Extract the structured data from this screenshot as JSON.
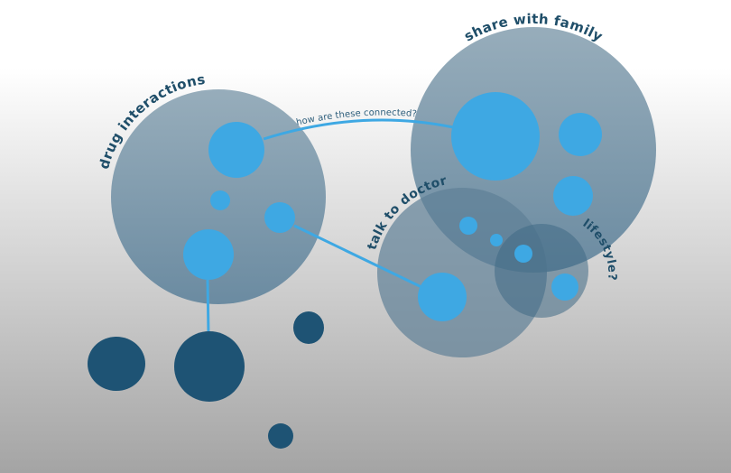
{
  "colors": {
    "cluster_top": "#97acba",
    "cluster_bottom": "#6a8aa0",
    "bubble": "#3ea8e3",
    "dark_node": "#1e5374",
    "label": "#1f4e69"
  },
  "clusters": {
    "drug_interactions": "drug interactions",
    "share_with_family": "share with family",
    "talk_to_doctor": "talk to doctor",
    "lifestyle": "lifestyle?"
  },
  "connections": {
    "question": "how are these connected?"
  }
}
